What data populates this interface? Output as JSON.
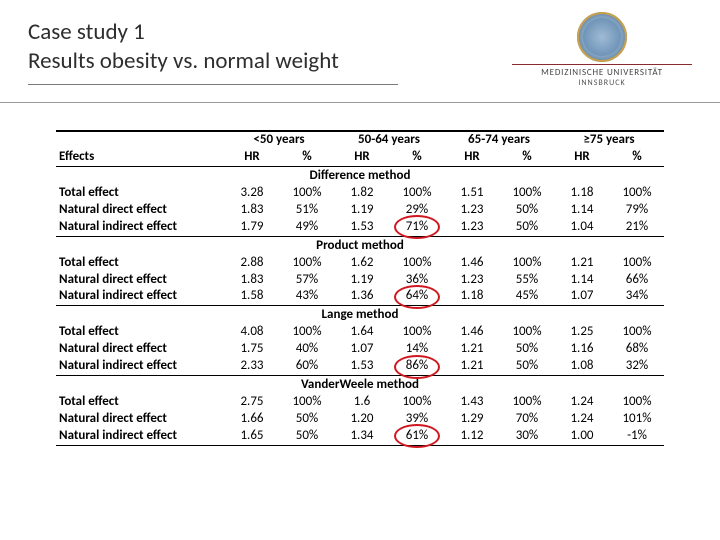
{
  "header": {
    "line1": "Case study 1",
    "line2": "Results obesity vs. normal weight",
    "uni_name": "MEDIZINISCHE UNIVERSITÄT",
    "uni_city": "INNSBRUCK"
  },
  "table": {
    "effects_label": "Effects",
    "age_groups": [
      "<50 years",
      "50-64 years",
      "65-74 years",
      "≥75 years"
    ],
    "sub_headers": [
      "HR",
      "%"
    ],
    "row_labels": {
      "total": "Total effect",
      "nde": "Natural direct effect",
      "nie": "Natural indirect effect"
    },
    "methods": [
      {
        "name": "Difference method",
        "rows": [
          {
            "label_key": "total",
            "cells": [
              "3.28",
              "100%",
              "1.82",
              "100%",
              "1.51",
              "100%",
              "1.18",
              "100%"
            ]
          },
          {
            "label_key": "nde",
            "cells": [
              "1.83",
              "51%",
              "1.19",
              "29%",
              "1.23",
              "50%",
              "1.14",
              "79%"
            ]
          },
          {
            "label_key": "nie",
            "cells": [
              "1.79",
              "49%",
              "1.53",
              "71%",
              "1.23",
              "50%",
              "1.04",
              "21%"
            ],
            "circle_col": 3
          }
        ]
      },
      {
        "name": "Product method",
        "rows": [
          {
            "label_key": "total",
            "cells": [
              "2.88",
              "100%",
              "1.62",
              "100%",
              "1.46",
              "100%",
              "1.21",
              "100%"
            ]
          },
          {
            "label_key": "nde",
            "cells": [
              "1.83",
              "57%",
              "1.19",
              "36%",
              "1.23",
              "55%",
              "1.14",
              "66%"
            ]
          },
          {
            "label_key": "nie",
            "cells": [
              "1.58",
              "43%",
              "1.36",
              "64%",
              "1.18",
              "45%",
              "1.07",
              "34%"
            ],
            "circle_col": 3
          }
        ]
      },
      {
        "name": "Lange method",
        "rows": [
          {
            "label_key": "total",
            "cells": [
              "4.08",
              "100%",
              "1.64",
              "100%",
              "1.46",
              "100%",
              "1.25",
              "100%"
            ]
          },
          {
            "label_key": "nde",
            "cells": [
              "1.75",
              "40%",
              "1.07",
              "14%",
              "1.21",
              "50%",
              "1.16",
              "68%"
            ]
          },
          {
            "label_key": "nie",
            "cells": [
              "2.33",
              "60%",
              "1.53",
              "86%",
              "1.21",
              "50%",
              "1.08",
              "32%"
            ],
            "circle_col": 3
          }
        ]
      },
      {
        "name": "VanderWeele method",
        "rows": [
          {
            "label_key": "total",
            "cells": [
              "2.75",
              "100%",
              "1.6",
              "100%",
              "1.43",
              "100%",
              "1.24",
              "100%"
            ]
          },
          {
            "label_key": "nde",
            "cells": [
              "1.66",
              "50%",
              "1.20",
              "39%",
              "1.29",
              "70%",
              "1.24",
              "101%"
            ]
          },
          {
            "label_key": "nie",
            "cells": [
              "1.65",
              "50%",
              "1.34",
              "61%",
              "1.12",
              "30%",
              "1.00",
              "-1%"
            ],
            "circle_col": 3
          }
        ]
      }
    ]
  },
  "style": {
    "highlight_color": "#d0161e",
    "rule_color": "#000000",
    "title_color": "#2e2e2e"
  }
}
